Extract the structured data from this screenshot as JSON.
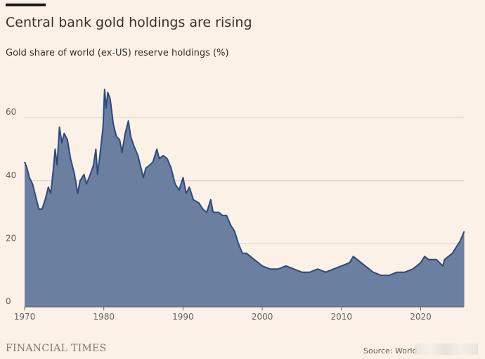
{
  "header": {
    "title": "Central bank gold holdings are rising",
    "subtitle": "Gold share of world (ex-US) reserve holdings (%)"
  },
  "footer": {
    "brand": "FINANCIAL TIMES",
    "source": "Source: World"
  },
  "colors": {
    "fill": "#6b7fa1",
    "line": "#2c4a7d",
    "grid": "#d9cfc5",
    "background": "#fcf1e6"
  },
  "chart_data": {
    "type": "area",
    "title": "Central bank gold holdings are rising",
    "ylabel": "Gold share of world (ex-US) reserve holdings (%)",
    "xlabel": "",
    "xlim": [
      1970,
      2025.5
    ],
    "ylim": [
      0,
      70
    ],
    "grid": true,
    "x_ticks": [
      "1970",
      "1980",
      "1990",
      "2000",
      "2010",
      "2020"
    ],
    "y_ticks": [
      "0",
      "20",
      "40",
      "60"
    ],
    "series": [
      {
        "name": "Gold share (%)",
        "points": [
          [
            1970,
            46
          ],
          [
            1970.3,
            44
          ],
          [
            1970.6,
            41
          ],
          [
            1971,
            39
          ],
          [
            1971.4,
            35
          ],
          [
            1971.8,
            31
          ],
          [
            1972.2,
            31
          ],
          [
            1972.6,
            34
          ],
          [
            1973,
            38
          ],
          [
            1973.3,
            36
          ],
          [
            1973.6,
            43
          ],
          [
            1973.85,
            50
          ],
          [
            1974.1,
            45
          ],
          [
            1974.4,
            57
          ],
          [
            1974.7,
            52
          ],
          [
            1975,
            55
          ],
          [
            1975.4,
            53
          ],
          [
            1975.8,
            47
          ],
          [
            1976.3,
            42
          ],
          [
            1976.7,
            36
          ],
          [
            1977,
            40
          ],
          [
            1977.5,
            42
          ],
          [
            1977.8,
            39
          ],
          [
            1978.3,
            42
          ],
          [
            1978.7,
            45
          ],
          [
            1979,
            50
          ],
          [
            1979.2,
            42
          ],
          [
            1979.5,
            48
          ],
          [
            1979.9,
            57
          ],
          [
            1980.1,
            69
          ],
          [
            1980.3,
            63
          ],
          [
            1980.5,
            68
          ],
          [
            1980.8,
            66
          ],
          [
            1981.2,
            58
          ],
          [
            1981.6,
            54
          ],
          [
            1982,
            53
          ],
          [
            1982.3,
            49
          ],
          [
            1982.7,
            55
          ],
          [
            1983.1,
            59
          ],
          [
            1983.4,
            54
          ],
          [
            1983.8,
            51
          ],
          [
            1984.3,
            48
          ],
          [
            1984.8,
            43
          ],
          [
            1985,
            41
          ],
          [
            1985.3,
            44
          ],
          [
            1985.8,
            45
          ],
          [
            1986.2,
            46
          ],
          [
            1986.7,
            50
          ],
          [
            1987,
            47
          ],
          [
            1987.5,
            48
          ],
          [
            1988,
            47
          ],
          [
            1988.5,
            44
          ],
          [
            1989,
            39
          ],
          [
            1989.5,
            37
          ],
          [
            1990,
            41
          ],
          [
            1990.4,
            36
          ],
          [
            1990.8,
            38
          ],
          [
            1991.3,
            34
          ],
          [
            1992,
            33
          ],
          [
            1992.5,
            31
          ],
          [
            1993,
            30
          ],
          [
            1993.5,
            34
          ],
          [
            1993.8,
            30
          ],
          [
            1994.5,
            30
          ],
          [
            1995,
            29
          ],
          [
            1995.5,
            29
          ],
          [
            1996,
            26
          ],
          [
            1996.5,
            24
          ],
          [
            1997,
            20
          ],
          [
            1997.5,
            17
          ],
          [
            1998,
            17
          ],
          [
            1998.5,
            16
          ],
          [
            1999,
            15
          ],
          [
            1999.5,
            14
          ],
          [
            2000,
            13
          ],
          [
            2001,
            12
          ],
          [
            2002,
            12
          ],
          [
            2003,
            13
          ],
          [
            2004,
            12
          ],
          [
            2005,
            11
          ],
          [
            2006,
            11
          ],
          [
            2007,
            12
          ],
          [
            2008,
            11
          ],
          [
            2009,
            12
          ],
          [
            2010,
            13
          ],
          [
            2011,
            14
          ],
          [
            2011.5,
            16
          ],
          [
            2012,
            15
          ],
          [
            2013,
            13
          ],
          [
            2014,
            11
          ],
          [
            2015,
            10
          ],
          [
            2016,
            10
          ],
          [
            2017,
            11
          ],
          [
            2018,
            11
          ],
          [
            2019,
            12
          ],
          [
            2020,
            14
          ],
          [
            2020.5,
            16
          ],
          [
            2021,
            15
          ],
          [
            2022,
            15
          ],
          [
            2022.8,
            13
          ],
          [
            2023,
            15
          ],
          [
            2024,
            17
          ],
          [
            2025,
            21
          ],
          [
            2025.5,
            24
          ]
        ]
      }
    ]
  }
}
